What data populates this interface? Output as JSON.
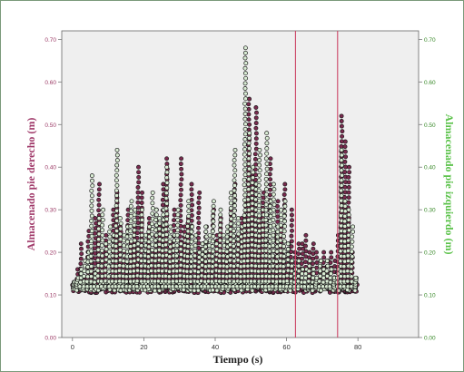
{
  "chart_data": {
    "type": "scatter",
    "xlabel": "Tiempo (s)",
    "ylabel_left": "Almacenado pie derecho (m)",
    "ylabel_right": "Almacenado pie izquierdo (m)",
    "xlim": [
      -3,
      97
    ],
    "ylim": [
      0,
      0.72
    ],
    "ylim_right": [
      0,
      0.72
    ],
    "x_ticks": [
      0,
      20,
      40,
      60,
      80
    ],
    "y_ticks_left": [
      "0.00",
      "0.10",
      "0.20",
      "0.30",
      "0.40",
      "0.50",
      "0.60",
      "0.70"
    ],
    "y_ticks_right": [
      "0.00",
      "0.10",
      "0.20",
      "0.30",
      "0.40",
      "0.50",
      "0.60",
      "0.70"
    ],
    "grid": false,
    "plot_background": "#efefef",
    "vertical_reference_lines": [
      {
        "x": 62.5,
        "color": "#cc4466"
      },
      {
        "x": 74.3,
        "color": "#cc4466"
      }
    ],
    "series": [
      {
        "axis": "left",
        "marker_color": "#7a2a4e",
        "baseline": 0.115,
        "peaks": [
          [
            0,
            0.12
          ],
          [
            1,
            0.16
          ],
          [
            2,
            0.22
          ],
          [
            3,
            0.14
          ],
          [
            4,
            0.25
          ],
          [
            5,
            0.2
          ],
          [
            6,
            0.28
          ],
          [
            7,
            0.36
          ],
          [
            8,
            0.2
          ],
          [
            9,
            0.24
          ],
          [
            10,
            0.18
          ],
          [
            11,
            0.3
          ],
          [
            12,
            0.34
          ],
          [
            13,
            0.26
          ],
          [
            14,
            0.2
          ],
          [
            15,
            0.3
          ],
          [
            16,
            0.22
          ],
          [
            17,
            0.26
          ],
          [
            18,
            0.4
          ],
          [
            19,
            0.34
          ],
          [
            20,
            0.24
          ],
          [
            21,
            0.28
          ],
          [
            22,
            0.2
          ],
          [
            23,
            0.3
          ],
          [
            24,
            0.26
          ],
          [
            25,
            0.36
          ],
          [
            26,
            0.42
          ],
          [
            27,
            0.22
          ],
          [
            28,
            0.3
          ],
          [
            29,
            0.24
          ],
          [
            30,
            0.42
          ],
          [
            31,
            0.26
          ],
          [
            32,
            0.28
          ],
          [
            33,
            0.36
          ],
          [
            34,
            0.2
          ],
          [
            35,
            0.34
          ],
          [
            36,
            0.22
          ],
          [
            37,
            0.26
          ],
          [
            38,
            0.2
          ],
          [
            39,
            0.3
          ],
          [
            40,
            0.24
          ],
          [
            41,
            0.28
          ],
          [
            42,
            0.2
          ],
          [
            43,
            0.26
          ],
          [
            44,
            0.3
          ],
          [
            45,
            0.36
          ],
          [
            46,
            0.24
          ],
          [
            47,
            0.28
          ],
          [
            48,
            0.32
          ],
          [
            49,
            0.56
          ],
          [
            50,
            0.38
          ],
          [
            51,
            0.54
          ],
          [
            52,
            0.28
          ],
          [
            53,
            0.34
          ],
          [
            54,
            0.3
          ],
          [
            55,
            0.42
          ],
          [
            56,
            0.24
          ],
          [
            57,
            0.32
          ],
          [
            58,
            0.26
          ],
          [
            59,
            0.36
          ],
          [
            60,
            0.22
          ],
          [
            61,
            0.3
          ],
          [
            62,
            0.2
          ],
          [
            63,
            0.22
          ],
          [
            64,
            0.22
          ],
          [
            65,
            0.24
          ],
          [
            66,
            0.2
          ],
          [
            67,
            0.22
          ],
          [
            68,
            0.2
          ],
          [
            69,
            0.18
          ],
          [
            70,
            0.2
          ],
          [
            71,
            0.18
          ],
          [
            72,
            0.2
          ],
          [
            73,
            0.18
          ],
          [
            74,
            0.24
          ],
          [
            75,
            0.52
          ],
          [
            76,
            0.46
          ],
          [
            77,
            0.4
          ],
          [
            78,
            0.2
          ],
          [
            79,
            0.14
          ]
        ]
      },
      {
        "axis": "right",
        "marker_color": "#d9ecd4",
        "baseline": 0.12,
        "peaks": [
          [
            0,
            0.13
          ],
          [
            1,
            0.14
          ],
          [
            2,
            0.16
          ],
          [
            3,
            0.18
          ],
          [
            4,
            0.2
          ],
          [
            5,
            0.38
          ],
          [
            6,
            0.16
          ],
          [
            7,
            0.28
          ],
          [
            8,
            0.3
          ],
          [
            9,
            0.22
          ],
          [
            10,
            0.26
          ],
          [
            11,
            0.24
          ],
          [
            12,
            0.44
          ],
          [
            13,
            0.28
          ],
          [
            14,
            0.24
          ],
          [
            15,
            0.26
          ],
          [
            16,
            0.32
          ],
          [
            17,
            0.3
          ],
          [
            18,
            0.22
          ],
          [
            19,
            0.3
          ],
          [
            20,
            0.24
          ],
          [
            21,
            0.26
          ],
          [
            22,
            0.34
          ],
          [
            23,
            0.3
          ],
          [
            24,
            0.28
          ],
          [
            25,
            0.3
          ],
          [
            26,
            0.4
          ],
          [
            27,
            0.26
          ],
          [
            28,
            0.24
          ],
          [
            29,
            0.3
          ],
          [
            30,
            0.22
          ],
          [
            31,
            0.24
          ],
          [
            32,
            0.32
          ],
          [
            33,
            0.26
          ],
          [
            34,
            0.24
          ],
          [
            35,
            0.2
          ],
          [
            36,
            0.22
          ],
          [
            37,
            0.26
          ],
          [
            38,
            0.24
          ],
          [
            39,
            0.32
          ],
          [
            40,
            0.22
          ],
          [
            41,
            0.3
          ],
          [
            42,
            0.24
          ],
          [
            43,
            0.26
          ],
          [
            44,
            0.34
          ],
          [
            45,
            0.44
          ],
          [
            46,
            0.28
          ],
          [
            47,
            0.26
          ],
          [
            48,
            0.68
          ],
          [
            49,
            0.48
          ],
          [
            50,
            0.4
          ],
          [
            51,
            0.36
          ],
          [
            52,
            0.44
          ],
          [
            53,
            0.3
          ],
          [
            54,
            0.48
          ],
          [
            55,
            0.32
          ],
          [
            56,
            0.36
          ],
          [
            57,
            0.26
          ],
          [
            58,
            0.3
          ],
          [
            59,
            0.32
          ],
          [
            60,
            0.22
          ],
          [
            61,
            0.18
          ],
          [
            62,
            0.16
          ],
          [
            63,
            0.18
          ],
          [
            64,
            0.16
          ],
          [
            65,
            0.16
          ],
          [
            66,
            0.18
          ],
          [
            67,
            0.16
          ],
          [
            68,
            0.14
          ],
          [
            69,
            0.18
          ],
          [
            70,
            0.16
          ],
          [
            71,
            0.18
          ],
          [
            72,
            0.16
          ],
          [
            73,
            0.14
          ],
          [
            74,
            0.16
          ],
          [
            75,
            0.44
          ],
          [
            76,
            0.32
          ],
          [
            77,
            0.3
          ],
          [
            78,
            0.26
          ],
          [
            79,
            0.14
          ]
        ]
      }
    ]
  }
}
